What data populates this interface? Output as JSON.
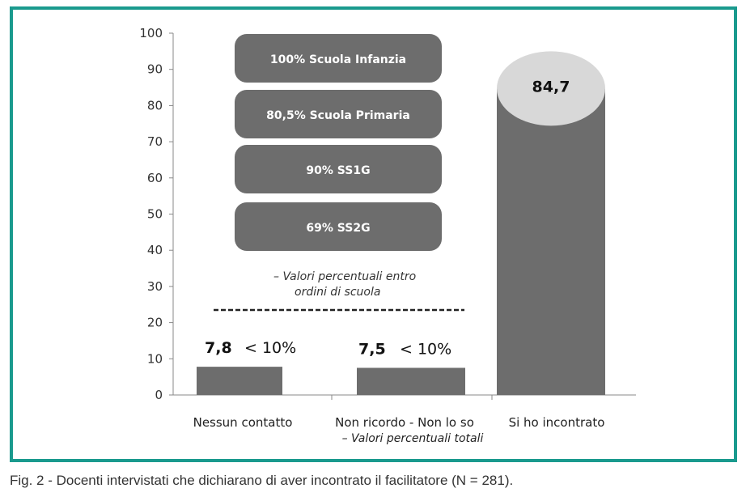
{
  "chart_data": {
    "type": "bar",
    "categories": [
      "Nessun contatto",
      "Non ricordo - Non lo so",
      "Si ho incontrato"
    ],
    "category_subtitle": "– Valori percentuali totali",
    "values": [
      7.8,
      7.5,
      84.7
    ],
    "data_labels": [
      "7,8",
      "7,5",
      "84,7"
    ],
    "extra_labels": [
      "< 10%",
      "< 10%",
      ""
    ],
    "ylim": [
      0,
      100
    ],
    "yticks": [
      0,
      10,
      20,
      30,
      40,
      50,
      60,
      70,
      80,
      90,
      100
    ],
    "grid": false,
    "breakdown": [
      {
        "value": 100,
        "label": "100%  Scuola Infanzia"
      },
      {
        "value": 80.5,
        "label": "80,5%  Scuola Primaria"
      },
      {
        "value": 90,
        "label": "90%  SS1G"
      },
      {
        "value": 69,
        "label": "69%  SS2G"
      }
    ],
    "breakdown_note": [
      "– Valori percentuali entro",
      "ordini di scuola"
    ]
  },
  "caption": "Fig. 2 - Docenti intervistati che dichiarano di aver incontrato il facilitatore (N = 281).",
  "colors": {
    "frame": "#1a9a8e",
    "bar": "#6d6d6d",
    "box": "#6d6d6d",
    "ellipse": "#d8d8d8",
    "axis": "#888888"
  }
}
